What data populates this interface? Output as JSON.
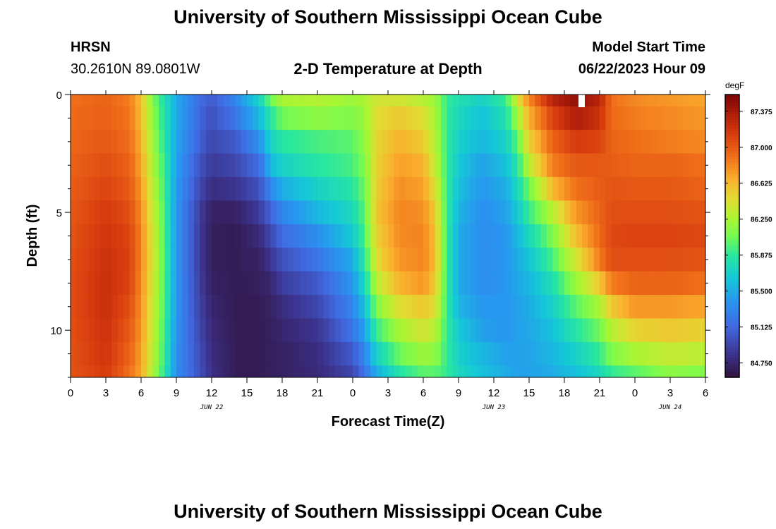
{
  "header": {
    "title": "University of Southern Mississippi Ocean Cube",
    "station": "HRSN",
    "coords": "30.2610N  89.0801W",
    "subtitle": "2-D Temperature at Depth",
    "model_label": "Model Start Time",
    "model_time": "06/22/2023 Hour 09"
  },
  "footer": {
    "title": "University of Southern Mississippi Ocean Cube"
  },
  "chart_data": {
    "type": "heatmap",
    "title": "2-D Temperature at Depth",
    "xlabel": "Forecast Time(Z)",
    "ylabel": "Depth (ft)",
    "units": "degF",
    "x_range_hours": [
      0,
      54
    ],
    "x_tick_labels": [
      "0",
      "3",
      "6",
      "9",
      "12",
      "15",
      "18",
      "21",
      "0",
      "3",
      "6",
      "9",
      "12",
      "15",
      "18",
      "21",
      "0",
      "3",
      "6"
    ],
    "date_labels": [
      {
        "label": "JUN 22",
        "hour": 12
      },
      {
        "label": "JUN 23",
        "hour": 36
      },
      {
        "label": "JUN 24",
        "hour": 51
      }
    ],
    "y_range": [
      0,
      12
    ],
    "y_tick_labels": [
      "0",
      "5",
      "10"
    ],
    "colorbar_ticks": [
      "87.375",
      "87.000",
      "86.625",
      "86.250",
      "85.875",
      "85.500",
      "85.125",
      "84.750"
    ],
    "colorbar_range": [
      84.6,
      87.55
    ],
    "depth_rows": [
      0,
      1,
      2,
      3,
      4,
      5,
      6,
      7,
      8,
      9,
      10,
      11,
      12
    ],
    "profiles": [
      {
        "hour": 0,
        "temps": [
          86.9,
          86.92,
          86.94,
          86.96,
          86.98,
          87.0,
          87.02,
          87.04,
          87.05,
          87.05,
          87.04,
          87.03,
          87.02
        ]
      },
      {
        "hour": 3,
        "temps": [
          86.95,
          86.97,
          87.0,
          87.05,
          87.1,
          87.15,
          87.18,
          87.2,
          87.22,
          87.22,
          87.2,
          87.18,
          87.15
        ]
      },
      {
        "hour": 5,
        "temps": [
          86.85,
          86.88,
          86.92,
          86.96,
          87.0,
          87.05,
          87.1,
          87.12,
          87.1,
          87.05,
          87.0,
          86.95,
          86.9
        ]
      },
      {
        "hour": 6,
        "temps": [
          86.6,
          86.62,
          86.66,
          86.7,
          86.75,
          86.8,
          86.82,
          86.82,
          86.8,
          86.78,
          86.75,
          86.72,
          86.7
        ]
      },
      {
        "hour": 7,
        "temps": [
          86.1,
          86.15,
          86.2,
          86.25,
          86.3,
          86.35,
          86.38,
          86.4,
          86.38,
          86.36,
          86.34,
          86.3,
          86.25
        ]
      },
      {
        "hour": 8,
        "temps": [
          85.8,
          85.82,
          85.85,
          85.9,
          85.92,
          85.95,
          85.96,
          85.97,
          85.96,
          85.95,
          85.92,
          85.9,
          85.85
        ]
      },
      {
        "hour": 9,
        "temps": [
          85.5,
          85.5,
          85.48,
          85.45,
          85.42,
          85.4,
          85.4,
          85.4,
          85.4,
          85.4,
          85.38,
          85.36,
          85.35
        ]
      },
      {
        "hour": 11,
        "temps": [
          85.15,
          85.12,
          85.08,
          85.02,
          84.96,
          84.9,
          84.88,
          84.88,
          84.9,
          84.92,
          84.95,
          84.98,
          85.0
        ]
      },
      {
        "hour": 12,
        "temps": [
          85.05,
          85.0,
          84.95,
          84.88,
          84.8,
          84.72,
          84.7,
          84.7,
          84.72,
          84.75,
          84.78,
          84.8,
          84.82
        ]
      },
      {
        "hour": 14,
        "temps": [
          85.3,
          85.2,
          85.05,
          84.95,
          84.85,
          84.72,
          84.68,
          84.68,
          84.68,
          84.68,
          84.68,
          84.68,
          84.68
        ]
      },
      {
        "hour": 16,
        "temps": [
          85.7,
          85.55,
          85.35,
          85.15,
          85.0,
          84.88,
          84.78,
          84.72,
          84.7,
          84.68,
          84.68,
          84.68,
          84.68
        ]
      },
      {
        "hour": 17,
        "temps": [
          86.05,
          85.85,
          85.7,
          85.55,
          85.3,
          85.1,
          84.95,
          84.85,
          84.75,
          84.72,
          84.7,
          84.7,
          84.7
        ]
      },
      {
        "hour": 18,
        "temps": [
          86.25,
          86.05,
          85.85,
          85.7,
          85.5,
          85.3,
          85.15,
          85.0,
          84.9,
          84.8,
          84.75,
          84.72,
          84.72
        ]
      },
      {
        "hour": 21,
        "temps": [
          86.28,
          86.15,
          85.95,
          85.85,
          85.7,
          85.55,
          85.35,
          85.2,
          85.05,
          84.95,
          84.85,
          84.8,
          84.78
        ]
      },
      {
        "hour": 24,
        "temps": [
          86.2,
          86.1,
          86.0,
          85.95,
          85.85,
          85.75,
          85.65,
          85.5,
          85.4,
          85.3,
          85.2,
          85.05,
          84.95
        ]
      },
      {
        "hour": 25,
        "temps": [
          86.25,
          86.2,
          86.15,
          86.1,
          86.05,
          86.0,
          85.95,
          85.85,
          85.75,
          85.6,
          85.45,
          85.3,
          85.2
        ]
      },
      {
        "hour": 26,
        "temps": [
          86.4,
          86.45,
          86.48,
          86.5,
          86.52,
          86.55,
          86.5,
          86.45,
          86.3,
          86.1,
          85.9,
          85.7,
          85.5
        ]
      },
      {
        "hour": 28,
        "temps": [
          86.4,
          86.55,
          86.65,
          86.72,
          86.78,
          86.82,
          86.8,
          86.75,
          86.65,
          86.45,
          86.25,
          86.05,
          85.85
        ]
      },
      {
        "hour": 30,
        "temps": [
          86.3,
          86.45,
          86.55,
          86.65,
          86.72,
          86.78,
          86.82,
          86.82,
          86.75,
          86.55,
          86.4,
          86.2,
          86.0
        ]
      },
      {
        "hour": 31,
        "temps": [
          86.2,
          86.25,
          86.3,
          86.35,
          86.45,
          86.55,
          86.6,
          86.62,
          86.55,
          86.45,
          86.3,
          86.15,
          86.0
        ]
      },
      {
        "hour": 32,
        "temps": [
          85.9,
          85.9,
          85.9,
          85.9,
          85.9,
          85.9,
          85.9,
          85.9,
          85.9,
          85.9,
          85.9,
          85.9,
          85.9
        ]
      },
      {
        "hour": 33,
        "temps": [
          85.8,
          85.75,
          85.7,
          85.65,
          85.6,
          85.55,
          85.5,
          85.5,
          85.5,
          85.55,
          85.65,
          85.7,
          85.75
        ]
      },
      {
        "hour": 35,
        "temps": [
          85.7,
          85.6,
          85.55,
          85.45,
          85.4,
          85.35,
          85.35,
          85.35,
          85.35,
          85.4,
          85.45,
          85.55,
          85.6
        ]
      },
      {
        "hour": 37,
        "temps": [
          85.9,
          85.8,
          85.7,
          85.6,
          85.5,
          85.45,
          85.4,
          85.4,
          85.4,
          85.4,
          85.4,
          85.45,
          85.5
        ]
      },
      {
        "hour": 38,
        "temps": [
          86.4,
          86.2,
          86.0,
          85.85,
          85.75,
          85.65,
          85.55,
          85.5,
          85.48,
          85.45,
          85.45,
          85.45,
          85.45
        ]
      },
      {
        "hour": 39,
        "temps": [
          86.8,
          86.65,
          86.5,
          86.3,
          86.05,
          85.9,
          85.75,
          85.62,
          85.55,
          85.5,
          85.48,
          85.46,
          85.45
        ]
      },
      {
        "hour": 41,
        "temps": [
          87.3,
          87.1,
          86.95,
          86.85,
          86.62,
          86.3,
          86.1,
          85.95,
          85.8,
          85.7,
          85.6,
          85.55,
          85.5
        ]
      },
      {
        "hour": 43,
        "temps": [
          87.45,
          87.35,
          87.15,
          87.0,
          86.9,
          86.75,
          86.6,
          86.4,
          86.2,
          86.0,
          85.85,
          85.7,
          85.6
        ]
      },
      {
        "hour": 45,
        "temps": [
          87.3,
          87.2,
          87.1,
          87.0,
          86.98,
          86.95,
          86.92,
          86.85,
          86.55,
          86.25,
          86.05,
          85.9,
          85.75
        ]
      },
      {
        "hour": 46,
        "temps": [
          86.9,
          86.92,
          86.95,
          86.98,
          87.02,
          87.05,
          87.08,
          87.05,
          86.85,
          86.55,
          86.3,
          86.1,
          85.9
        ]
      },
      {
        "hour": 48,
        "temps": [
          86.8,
          86.85,
          86.9,
          86.95,
          87.0,
          87.05,
          87.1,
          87.05,
          86.95,
          86.75,
          86.5,
          86.25,
          86.0
        ]
      },
      {
        "hour": 51,
        "temps": [
          86.75,
          86.8,
          86.85,
          86.95,
          87.0,
          87.05,
          87.1,
          87.05,
          86.95,
          86.75,
          86.55,
          86.35,
          86.15
        ]
      },
      {
        "hour": 54,
        "temps": [
          86.7,
          86.75,
          86.8,
          86.9,
          86.95,
          87.02,
          87.08,
          87.02,
          86.9,
          86.7,
          86.5,
          86.3,
          86.1
        ]
      }
    ]
  }
}
